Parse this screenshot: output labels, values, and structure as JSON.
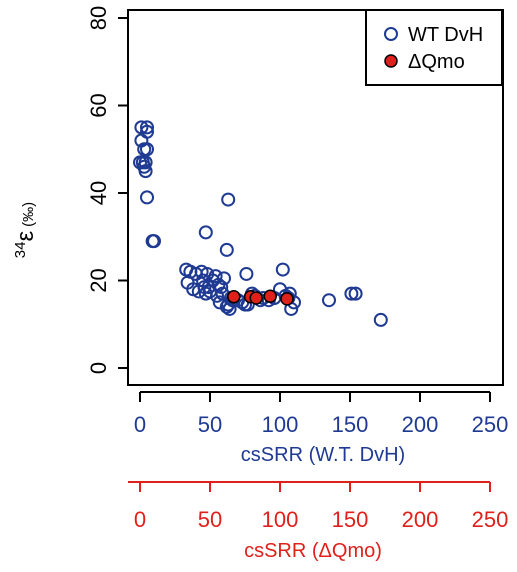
{
  "chart_data": {
    "type": "scatter",
    "ylabel": {
      "superscript": "34",
      "symbol": "ε",
      "unit": "(‰)"
    },
    "xlabel": "csSRR (W.T. DvH)",
    "xlabel2": "csSRR (ΔQmo)",
    "xlim": [
      0,
      250
    ],
    "ylim": [
      0,
      80
    ],
    "x_ticks": [
      0,
      50,
      100,
      150,
      200,
      250
    ],
    "x_ticks2": [
      0,
      50,
      100,
      150,
      200,
      250
    ],
    "y_ticks": [
      0,
      20,
      40,
      60,
      80
    ],
    "legend_position": "top-right",
    "colors": {
      "wt": "#1f3a93",
      "mutant_fill": "#e0201b",
      "mutant_edge": "#000000",
      "axis2": "#e0201b",
      "axis1_labels": "#1f3a93"
    },
    "series": [
      {
        "name": "WT DvH",
        "marker": "open-circle",
        "points": [
          [
            0,
            47
          ],
          [
            1,
            55
          ],
          [
            1,
            52
          ],
          [
            2,
            47
          ],
          [
            3,
            46
          ],
          [
            3,
            50
          ],
          [
            4,
            45
          ],
          [
            4,
            47
          ],
          [
            5,
            54
          ],
          [
            5,
            50
          ],
          [
            5,
            55
          ],
          [
            5,
            39
          ],
          [
            9,
            29
          ],
          [
            10,
            29
          ],
          [
            33,
            22.5
          ],
          [
            36,
            22
          ],
          [
            34,
            19.5
          ],
          [
            38,
            18
          ],
          [
            40,
            21.5
          ],
          [
            42,
            17.5
          ],
          [
            44,
            22
          ],
          [
            45,
            20
          ],
          [
            46,
            18.5
          ],
          [
            47,
            17
          ],
          [
            48,
            21.5
          ],
          [
            49,
            18.5
          ],
          [
            50,
            17.5
          ],
          [
            52,
            20
          ],
          [
            54,
            21
          ],
          [
            55,
            16.5
          ],
          [
            56,
            19
          ],
          [
            57,
            15
          ],
          [
            58,
            18.5
          ],
          [
            59,
            17
          ],
          [
            60,
            20.5
          ],
          [
            62,
            14
          ],
          [
            63,
            14.5
          ],
          [
            64,
            13.5
          ],
          [
            47,
            31
          ],
          [
            62,
            27
          ],
          [
            63,
            38.5
          ],
          [
            65,
            16
          ],
          [
            66,
            15.5
          ],
          [
            70,
            15.5
          ],
          [
            73,
            15
          ],
          [
            75,
            14.5
          ],
          [
            77,
            14.5
          ],
          [
            76,
            21.5
          ],
          [
            80,
            17
          ],
          [
            82,
            16.5
          ],
          [
            86,
            15.5
          ],
          [
            88,
            16
          ],
          [
            92,
            15.5
          ],
          [
            96,
            16
          ],
          [
            100,
            18
          ],
          [
            102,
            22.5
          ],
          [
            104,
            16.5
          ],
          [
            106,
            16
          ],
          [
            107,
            17
          ],
          [
            108,
            13.5
          ],
          [
            110,
            15
          ],
          [
            135,
            15.5
          ],
          [
            151,
            17
          ],
          [
            154,
            17
          ],
          [
            172,
            11
          ]
        ]
      },
      {
        "name": "ΔQmo",
        "marker": "filled-circle",
        "points": [
          [
            67,
            16.3
          ],
          [
            79,
            16.3
          ],
          [
            83,
            16
          ],
          [
            93,
            16.4
          ],
          [
            105,
            15.8
          ]
        ]
      }
    ]
  }
}
